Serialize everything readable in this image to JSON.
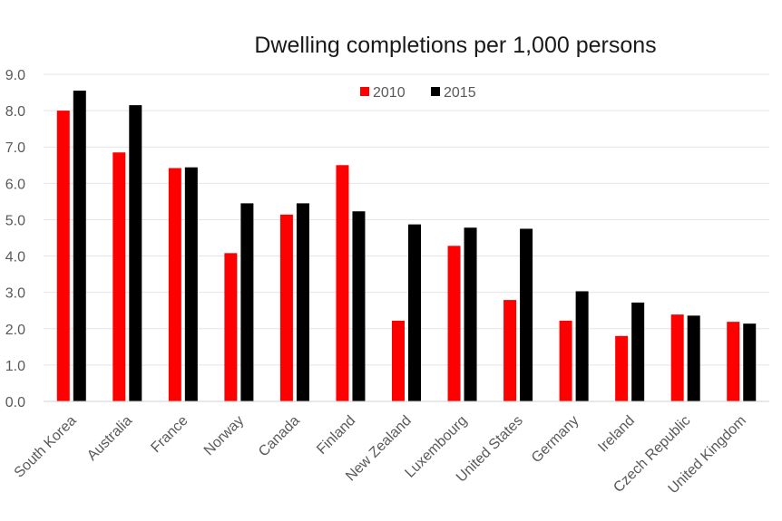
{
  "chart_data": {
    "type": "bar",
    "title": "Dwelling completions per 1,000 persons",
    "xlabel": "",
    "ylabel": "",
    "ylim": [
      0,
      9
    ],
    "yticks": [
      "0.0",
      "1.0",
      "2.0",
      "3.0",
      "4.0",
      "5.0",
      "6.0",
      "7.0",
      "8.0",
      "9.0"
    ],
    "grid": true,
    "legend_position": "top-center",
    "categories": [
      "South Korea",
      "Australia",
      "France",
      "Norway",
      "Canada",
      "Finland",
      "New Zealand",
      "Luxembourg",
      "United States",
      "Germany",
      "Ireland",
      "Czech Republic",
      "United Kingdom"
    ],
    "series": [
      {
        "name": "2010",
        "color": "#ff0000",
        "values": [
          8.0,
          6.85,
          6.42,
          4.08,
          5.14,
          6.5,
          2.22,
          4.28,
          2.79,
          2.22,
          1.8,
          2.39,
          2.19
        ]
      },
      {
        "name": "2015",
        "color": "#000000",
        "values": [
          8.55,
          8.15,
          6.44,
          5.45,
          5.45,
          5.23,
          4.87,
          4.78,
          4.75,
          3.03,
          2.72,
          2.36,
          2.14
        ]
      }
    ]
  }
}
